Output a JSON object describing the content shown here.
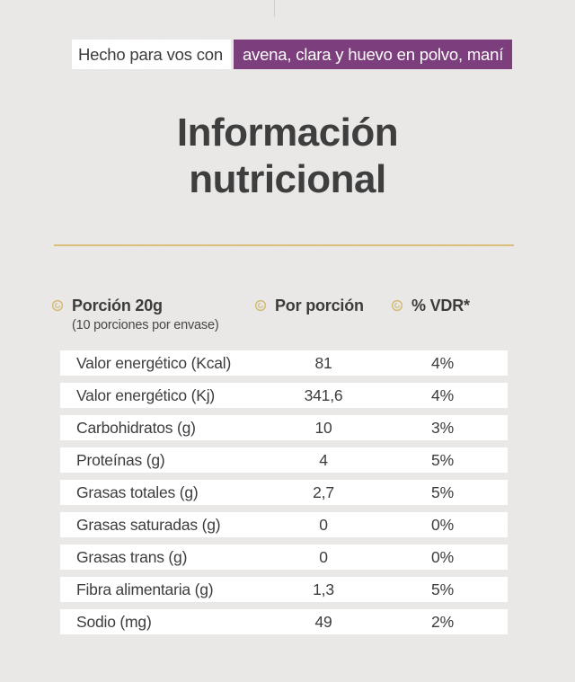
{
  "colors": {
    "page_background": "#ebe9e7",
    "highlight_purple": "#7d3e7d",
    "gold_accent": "#d8c07c",
    "text_dark": "#3d3d3d",
    "row_background": "#ffffff"
  },
  "top_banner": {
    "prefix": "Hecho para vos con",
    "highlight": "avena, clara y huevo en polvo, maní"
  },
  "title": {
    "line1": "Información",
    "line2": "nutricional"
  },
  "table": {
    "header": {
      "portion": {
        "icon": "grain-icon",
        "label": "Porción 20g",
        "sub": "(10 porciones por envase)"
      },
      "per_portion": {
        "icon": "grain-icon",
        "label": "Por porción"
      },
      "vdr": {
        "icon": "grain-icon",
        "label": "% VDR*"
      }
    },
    "rows": [
      {
        "label": "Valor energético (Kcal)",
        "value": "81",
        "vdr": "4%"
      },
      {
        "label": "Valor energético (Kj)",
        "value": "341,6",
        "vdr": "4%"
      },
      {
        "label": "Carbohidratos (g)",
        "value": "10",
        "vdr": "3%"
      },
      {
        "label": "Proteínas (g)",
        "value": "4",
        "vdr": "5%"
      },
      {
        "label": "Grasas totales (g)",
        "value": "2,7",
        "vdr": "5%"
      },
      {
        "label": "Grasas saturadas (g)",
        "value": "0",
        "vdr": "0%"
      },
      {
        "label": "Grasas trans (g)",
        "value": "0",
        "vdr": "0%"
      },
      {
        "label": "Fibra alimentaria (g)",
        "value": "1,3",
        "vdr": "5%"
      },
      {
        "label": "Sodio (mg)",
        "value": "49",
        "vdr": "2%"
      }
    ]
  }
}
